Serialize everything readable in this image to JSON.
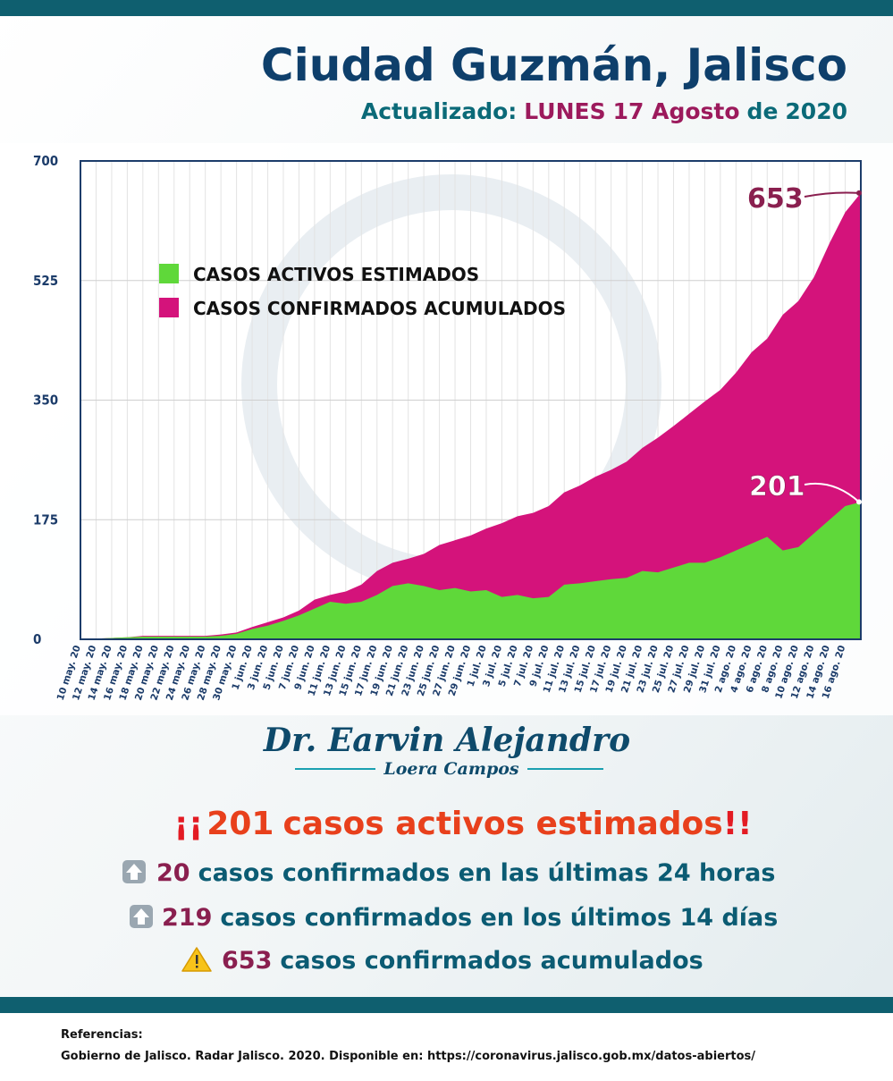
{
  "header": {
    "title": "Ciudad Guzmán, Jalisco",
    "subtitle": [
      "Actualizado:",
      "LUNES",
      "17 Agosto",
      "de",
      "2020"
    ]
  },
  "chart_data": {
    "type": "area",
    "categories": [
      "10 may. 20",
      "12 may. 20",
      "14 may. 20",
      "16 may. 20",
      "18 may. 20",
      "20 may. 20",
      "22 may. 20",
      "24 may. 20",
      "26 may. 20",
      "28 may. 20",
      "30 may. 20",
      "1 jun. 20",
      "3 jun. 20",
      "5 jun. 20",
      "7 jun. 20",
      "9 jun. 20",
      "11 jun. 20",
      "13 jun. 20",
      "15 jun. 20",
      "17 jun. 20",
      "19 jun. 20",
      "21 jun. 20",
      "23 jun. 20",
      "25 jun. 20",
      "27 jun. 20",
      "29 jun. 20",
      "1 jul. 20",
      "3 jul. 20",
      "5 jul. 20",
      "7 jul. 20",
      "9 jul. 20",
      "11 jul. 20",
      "13 jul. 20",
      "15 jul. 20",
      "17 jul. 20",
      "19 jul. 20",
      "21 jul. 20",
      "23 jul. 20",
      "25 jul. 20",
      "27 jul. 20",
      "29 jul. 20",
      "31 jul. 20",
      "2 ago. 20",
      "4 ago. 20",
      "6 ago. 20",
      "8 ago. 20",
      "10 ago. 20",
      "12 ago. 20",
      "14 ago. 20",
      "16 ago. 20",
      null
    ],
    "series": [
      {
        "name": "CASOS ACTIVOS ESTIMADOS",
        "color": "#5fd83a",
        "values": [
          0,
          1,
          2,
          3,
          4,
          4,
          4,
          4,
          4,
          5,
          8,
          15,
          20,
          27,
          35,
          45,
          55,
          52,
          55,
          65,
          78,
          82,
          78,
          72,
          75,
          70,
          72,
          62,
          65,
          60,
          62,
          80,
          82,
          85,
          88,
          90,
          100,
          98,
          105,
          112,
          112,
          120,
          130,
          140,
          150,
          130,
          135,
          155,
          175,
          195,
          201
        ]
      },
      {
        "name": "CASOS CONFIRMADOS ACUMULADOS",
        "color": "#d4137b",
        "values": [
          0,
          1,
          2,
          3,
          5,
          5,
          5,
          5,
          5,
          7,
          10,
          18,
          25,
          32,
          42,
          58,
          65,
          70,
          80,
          100,
          112,
          118,
          125,
          138,
          145,
          152,
          162,
          170,
          180,
          185,
          195,
          215,
          225,
          238,
          248,
          260,
          280,
          295,
          312,
          330,
          348,
          365,
          390,
          420,
          440,
          475,
          495,
          530,
          580,
          625,
          653
        ]
      }
    ],
    "ylim": [
      0,
      700
    ],
    "yticks": [
      0,
      175,
      350,
      525,
      700
    ],
    "grid": true,
    "legend": "upper left"
  },
  "signature": {
    "name": "Dr. Earvin Alejandro",
    "surname": "Loera Campos"
  },
  "summary": [
    {
      "prefix": "¡¡",
      "number": 201,
      "text": "casos activos estimados",
      "suffix": "!!"
    },
    {
      "number": 20,
      "text": "casos confirmados en las últimas 24 horas"
    },
    {
      "number": 219,
      "text": "casos confirmados en los últimos 14 días"
    },
    {
      "number": 653,
      "text": "casos confirmados acumulados"
    }
  ],
  "references": {
    "heading": "Referencias:",
    "text": "Gobierno de Jalisco. Radar Jalisco. 2020. Disponible en: https://coronavirus.jalisco.gob.mx/datos-abiertos/"
  }
}
